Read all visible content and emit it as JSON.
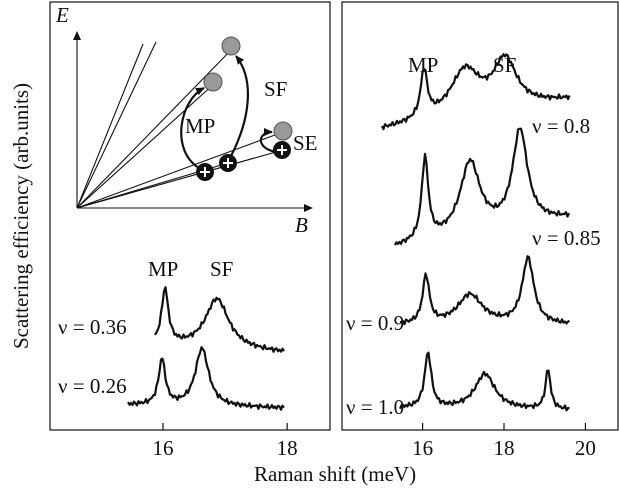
{
  "figure": {
    "y_label": "Scattering efficiency (arb.units)",
    "x_label": "Raman shift (meV)",
    "left": {
      "xlim": [
        14.18,
        18.69
      ],
      "xticks": [
        16,
        18
      ],
      "inset": {
        "e_axis": "E",
        "b_axis": "B",
        "mp": "MP",
        "sf": "SF",
        "se": "SE"
      },
      "peak_labels": [
        "MP",
        "SF"
      ],
      "spectra": [
        "ν = 0.36",
        "ν = 0.26"
      ]
    },
    "right": {
      "xlim": [
        14.02,
        20.8
      ],
      "xticks": [
        16,
        18,
        20
      ],
      "peak_labels": [
        "MP",
        "SF"
      ],
      "spectra": [
        "ν = 0.8",
        "ν = 0.85",
        "ν = 0.9",
        "ν = 1.0"
      ]
    }
  }
}
